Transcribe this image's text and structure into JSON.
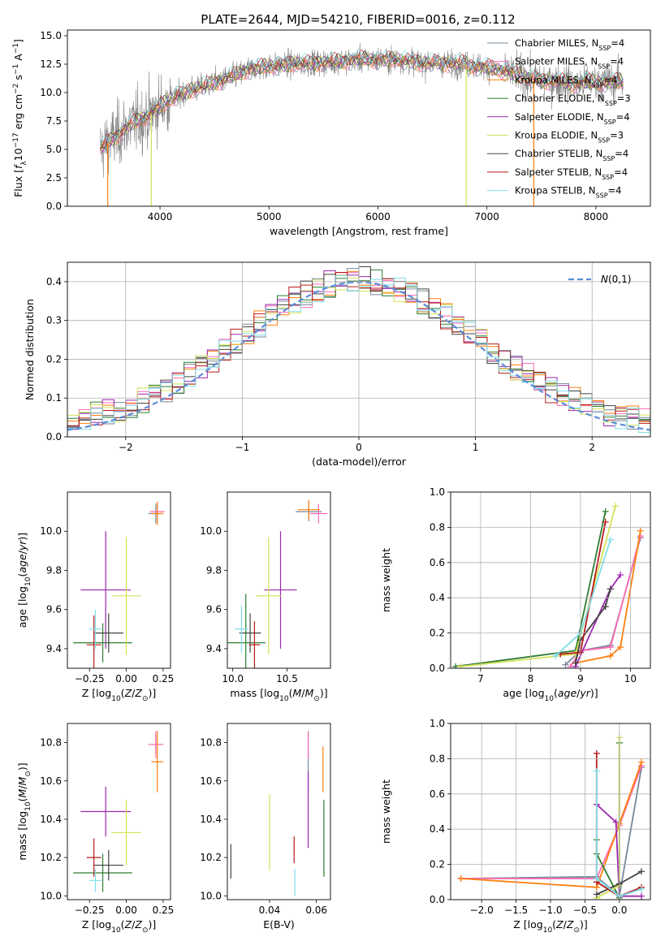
{
  "figure": {
    "title": "PLATE=2644, MJD=54210, FIBERID=0016, z=0.112"
  },
  "series_styles": [
    {
      "name": "Chabrier MILES",
      "nssp": "4",
      "color": "#778899"
    },
    {
      "name": "Salpeter MILES",
      "nssp": "4",
      "color": "#ff69b4"
    },
    {
      "name": "Kroupa MILES",
      "nssp": "4",
      "color": "#ff7f0e"
    },
    {
      "name": "Chabrier ELODIE",
      "nssp": "3",
      "color": "#2e7d32"
    },
    {
      "name": "Salpeter ELODIE",
      "nssp": "4",
      "color": "#9c27b0"
    },
    {
      "name": "Kroupa ELODIE",
      "nssp": "3",
      "color": "#d4e157"
    },
    {
      "name": "Chabrier STELIB",
      "nssp": "4",
      "color": "#424242"
    },
    {
      "name": "Salpeter STELIB",
      "nssp": "4",
      "color": "#b71c1c"
    },
    {
      "name": "Kroupa STELIB",
      "nssp": "4",
      "color": "#80deea"
    }
  ],
  "chart_data": [
    {
      "id": "spectrum",
      "type": "line",
      "title": "PLATE=2644, MJD=54210, FIBERID=0016, z=0.112",
      "xlabel": "wavelength [Angstrom, rest frame]",
      "ylabel": "Flux [f",
      "xlim": [
        3150,
        8500
      ],
      "ylim": [
        0,
        15.5
      ],
      "xticks": [
        4000,
        5000,
        6000,
        7000,
        8000
      ],
      "yticks": [
        "0.0",
        "2.5",
        "5.0",
        "7.5",
        "10.0",
        "12.5",
        "15.0"
      ],
      "grid": false,
      "legend": "right",
      "data_color": "#808080",
      "continuum": {
        "x": [
          3450,
          3600,
          3700,
          3800,
          3900,
          4000,
          4100,
          4200,
          4300,
          4400,
          4500,
          4600,
          4700,
          4800,
          4900,
          5000,
          5200,
          5400,
          5600,
          5800,
          6000,
          6200,
          6400,
          6600,
          6800,
          7000,
          7200,
          7400,
          7600,
          7800,
          8000,
          8250
        ],
        "y": [
          5.0,
          6.2,
          7.0,
          7.5,
          8.0,
          8.8,
          9.4,
          9.9,
          10.3,
          10.5,
          10.9,
          11.2,
          11.5,
          12.0,
          12.2,
          12.3,
          12.5,
          12.6,
          12.7,
          12.9,
          12.9,
          12.9,
          12.6,
          12.6,
          12.5,
          12.2,
          11.8,
          11.2,
          11.0,
          10.8,
          10.9,
          11.0
        ]
      }
    },
    {
      "id": "residuals",
      "type": "histogram",
      "xlabel": "(data-model)/error",
      "ylabel": "Normed distribution",
      "xlim": [
        -2.5,
        2.5
      ],
      "ylim": [
        0,
        0.45
      ],
      "xticks": [
        "-2",
        "-1",
        "0",
        "1",
        "2"
      ],
      "yticks": [
        "0.0",
        "0.1",
        "0.2",
        "0.3",
        "0.4"
      ],
      "grid": true,
      "legend_label": "(0,1)",
      "bin_width": 0.1
    },
    {
      "id": "age_vs_Z",
      "type": "errorbar",
      "xlabel": "Z [log",
      "ylabel": "age  [log",
      "xlim": [
        -0.4,
        0.3
      ],
      "ylim": [
        9.3,
        10.2
      ],
      "xticks": [
        "-0.25",
        "0.00",
        "0.25"
      ],
      "yticks": [
        "9.4",
        "9.6",
        "9.8",
        "10.0"
      ],
      "points": [
        {
          "x": 0.2,
          "y": 10.09,
          "xerr": 0.05,
          "yerr": 0.05
        },
        {
          "x": 0.21,
          "y": 10.1,
          "xerr": 0.05,
          "yerr": 0.05
        },
        {
          "x": 0.21,
          "y": 10.09,
          "xerr": 0.04,
          "yerr": 0.06
        },
        {
          "x": -0.16,
          "y": 9.43,
          "xerr": 0.2,
          "yerr": 0.1
        },
        {
          "x": -0.14,
          "y": 9.7,
          "xerr": 0.17,
          "yerr": 0.3
        },
        {
          "x": 0.0,
          "y": 9.67,
          "xerr": 0.1,
          "yerr": 0.3
        },
        {
          "x": -0.12,
          "y": 9.48,
          "xerr": 0.1,
          "yerr": 0.1
        },
        {
          "x": -0.22,
          "y": 9.42,
          "xerr": 0.05,
          "yerr": 0.15
        },
        {
          "x": -0.21,
          "y": 9.5,
          "xerr": 0.04,
          "yerr": 0.1
        }
      ]
    },
    {
      "id": "age_vs_mass",
      "type": "errorbar",
      "xlabel": "mass [log",
      "xlim": [
        9.95,
        10.9
      ],
      "ylim": [
        9.3,
        10.2
      ],
      "xticks": [
        "10.0",
        "10.5"
      ],
      "yticks": [
        "9.4",
        "9.6",
        "9.8",
        "10.0"
      ],
      "points": [
        {
          "x": 10.7,
          "y": 10.1,
          "xerr": 0.12,
          "yerr": 0.05
        },
        {
          "x": 10.79,
          "y": 10.09,
          "xerr": 0.08,
          "yerr": 0.05
        },
        {
          "x": 10.7,
          "y": 10.11,
          "xerr": 0.1,
          "yerr": 0.05
        },
        {
          "x": 10.12,
          "y": 9.43,
          "xerr": 0.18,
          "yerr": 0.25
        },
        {
          "x": 10.44,
          "y": 9.7,
          "xerr": 0.15,
          "yerr": 0.3
        },
        {
          "x": 10.33,
          "y": 9.67,
          "xerr": 0.12,
          "yerr": 0.3
        },
        {
          "x": 10.16,
          "y": 9.48,
          "xerr": 0.1,
          "yerr": 0.1
        },
        {
          "x": 10.2,
          "y": 9.42,
          "xerr": 0.05,
          "yerr": 0.12
        },
        {
          "x": 10.08,
          "y": 9.5,
          "xerr": 0.06,
          "yerr": 0.12
        }
      ]
    },
    {
      "id": "massweight_vs_age",
      "type": "line",
      "xlabel": "age  [log",
      "ylabel": "mass weight",
      "xlim": [
        6.4,
        10.4
      ],
      "ylim": [
        0,
        1.0
      ],
      "xticks": [
        "7",
        "8",
        "9",
        "10"
      ],
      "yticks": [
        "0.0",
        "0.2",
        "0.4",
        "0.6",
        "0.8",
        "1.0"
      ],
      "grid": true,
      "series": [
        {
          "x": [
            8.7,
            9.0,
            9.6,
            10.2
          ],
          "y": [
            0.02,
            0.1,
            0.13,
            0.74
          ]
        },
        {
          "x": [
            8.8,
            9.0,
            9.6,
            10.2
          ],
          "y": [
            0.01,
            0.1,
            0.12,
            0.75
          ]
        },
        {
          "x": [
            8.9,
            9.6,
            9.8,
            10.2
          ],
          "y": [
            0.03,
            0.07,
            0.12,
            0.78
          ]
        },
        {
          "x": [
            6.5,
            8.9,
            9.5
          ],
          "y": [
            0.01,
            0.1,
            0.89
          ]
        },
        {
          "x": [
            8.9,
            9.6,
            9.8
          ],
          "y": [
            0.01,
            0.45,
            0.53
          ]
        },
        {
          "x": [
            6.6,
            8.9,
            9.7
          ],
          "y": [
            0.01,
            0.08,
            0.92
          ]
        },
        {
          "x": [
            8.9,
            9.0,
            9.5,
            9.6
          ],
          "y": [
            0.03,
            0.16,
            0.35,
            0.45
          ]
        },
        {
          "x": [
            8.6,
            9.0,
            9.5
          ],
          "y": [
            0.08,
            0.09,
            0.83
          ]
        },
        {
          "x": [
            8.5,
            9.0,
            9.6
          ],
          "y": [
            0.07,
            0.2,
            0.73
          ]
        }
      ]
    },
    {
      "id": "mass_vs_Z",
      "type": "errorbar",
      "xlabel": "Z [log",
      "ylabel": "mass [log",
      "xlim": [
        -0.4,
        0.3
      ],
      "ylim": [
        9.98,
        10.9
      ],
      "xticks": [
        "-0.25",
        "0.00",
        "0.25"
      ],
      "yticks": [
        "10.0",
        "10.2",
        "10.4",
        "10.6",
        "10.8"
      ],
      "points": [
        {
          "x": 0.2,
          "y": 10.79,
          "xerr": 0.05,
          "yerr": 0.05
        },
        {
          "x": 0.2,
          "y": 10.79,
          "xerr": 0.05,
          "yerr": 0.07
        },
        {
          "x": 0.21,
          "y": 10.7,
          "xerr": 0.04,
          "yerr": 0.16
        },
        {
          "x": -0.16,
          "y": 10.12,
          "xerr": 0.2,
          "yerr": 0.1
        },
        {
          "x": -0.14,
          "y": 10.44,
          "xerr": 0.17,
          "yerr": 0.13
        },
        {
          "x": 0.0,
          "y": 10.33,
          "xerr": 0.1,
          "yerr": 0.17
        },
        {
          "x": -0.12,
          "y": 10.16,
          "xerr": 0.1,
          "yerr": 0.08
        },
        {
          "x": -0.22,
          "y": 10.2,
          "xerr": 0.05,
          "yerr": 0.1
        },
        {
          "x": -0.21,
          "y": 10.08,
          "xerr": 0.04,
          "yerr": 0.06
        }
      ]
    },
    {
      "id": "mass_vs_EBV",
      "type": "errorbar",
      "xlabel": "E(B-V)",
      "xlim": [
        0.022,
        0.066
      ],
      "ylim": [
        9.98,
        10.9
      ],
      "xticks": [
        "0.04",
        "0.06"
      ],
      "yticks": [
        "10.0",
        "10.2",
        "10.4",
        "10.6",
        "10.8"
      ],
      "points": [
        {
          "x": 0.0565,
          "y": 10.7,
          "yerr": 0.16
        },
        {
          "x": 0.0565,
          "y": 10.79,
          "yerr": 0.07
        },
        {
          "x": 0.0628,
          "y": 10.66,
          "yerr": 0.12
        },
        {
          "x": 0.0632,
          "y": 10.3,
          "yerr": 0.2
        },
        {
          "x": 0.0565,
          "y": 10.45,
          "yerr": 0.2
        },
        {
          "x": 0.04,
          "y": 10.33,
          "yerr": 0.2
        },
        {
          "x": 0.0235,
          "y": 10.18,
          "yerr": 0.09
        },
        {
          "x": 0.0505,
          "y": 10.24,
          "yerr": 0.07
        },
        {
          "x": 0.0508,
          "y": 10.07,
          "yerr": 0.07
        }
      ]
    },
    {
      "id": "massweight_vs_Z",
      "type": "line",
      "xlabel": "Z [log",
      "ylabel": "mass weight",
      "xlim": [
        -2.45,
        0.45
      ],
      "ylim": [
        0,
        1.0
      ],
      "xticks": [
        "-2.0",
        "-1.5",
        "-1.0",
        "-0.5",
        "0.0"
      ],
      "yticks": [
        "0.0",
        "0.2",
        "0.4",
        "0.6",
        "0.8",
        "1.0"
      ],
      "grid": true,
      "series": [
        {
          "x": [
            -2.3,
            -0.33,
            0.0,
            0.32
          ],
          "y": [
            0.12,
            0.13,
            0.02,
            0.75
          ]
        },
        {
          "x": [
            -2.3,
            -0.33,
            0.0,
            0.32
          ],
          "y": [
            0.12,
            0.12,
            0.42,
            0.76
          ]
        },
        {
          "x": [
            -2.3,
            -0.33,
            0.0,
            0.32
          ],
          "y": [
            0.12,
            0.07,
            0.43,
            0.78
          ]
        },
        {
          "x": [
            -0.33,
            -0.33,
            0.0,
            0.0
          ],
          "y": [
            0.34,
            0.26,
            0.01,
            0.89
          ]
        },
        {
          "x": [
            -0.33,
            -0.05,
            0.0,
            0.32
          ],
          "y": [
            0.54,
            0.44,
            0.02,
            0.02
          ]
        },
        {
          "x": [
            -0.33,
            0.0,
            0.0
          ],
          "y": [
            0.01,
            0.08,
            0.92
          ]
        },
        {
          "x": [
            -0.33,
            0.0,
            0.32
          ],
          "y": [
            0.03,
            0.09,
            0.16
          ]
        },
        {
          "x": [
            -0.33,
            -0.33,
            0.0,
            0.32
          ],
          "y": [
            0.83,
            0.1,
            0.02,
            0.07
          ]
        },
        {
          "x": [
            -0.33,
            -0.33,
            0.0,
            0.32
          ],
          "y": [
            0.73,
            0.12,
            0.02,
            0.06
          ]
        }
      ]
    }
  ]
}
